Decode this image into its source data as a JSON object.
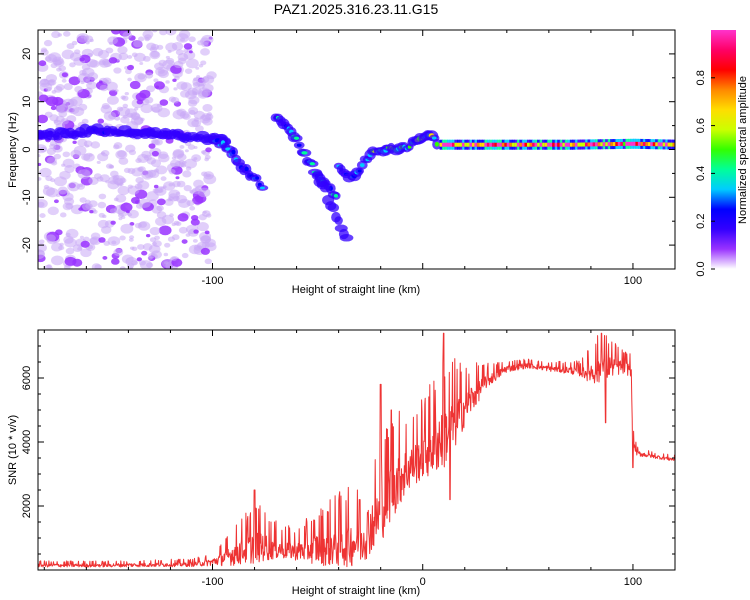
{
  "figure": {
    "title": "PAZ1.2025.316.23.11.G15"
  },
  "chart_data": [
    {
      "type": "heatmap",
      "name": "spectrogram",
      "title": "PAZ1.2025.316.23.11.G15",
      "xlabel": "Height of straight line (km)",
      "ylabel": "Frequency (Hz)",
      "xlim": [
        -183,
        120
      ],
      "ylim": [
        -25,
        25
      ],
      "xticks": [
        -100,
        0,
        100
      ],
      "xtick_labels": [
        "-100",
        "",
        "100"
      ],
      "yticks": [
        -20,
        -10,
        0,
        10,
        20
      ],
      "ytick_labels": [
        "-20",
        "-10",
        "0",
        "10",
        "20"
      ],
      "colorbar": {
        "label": "Normalized spectral amplitude",
        "range": [
          0,
          1
        ],
        "ticks": [
          0.0,
          0.2,
          0.4,
          0.6,
          0.8
        ],
        "tick_labels": [
          "0.0",
          "0.2",
          "0.4",
          "0.6",
          "0.8"
        ],
        "colors": [
          "#ffffff",
          "#9933ff",
          "#3300ff",
          "#0000ff",
          "#00ccff",
          "#00ff99",
          "#33ff00",
          "#ccff00",
          "#ffdd00",
          "#ff8800",
          "#ff0000",
          "#ff0066",
          "#ff33cc"
        ]
      },
      "noise_region": {
        "x": [
          -183,
          -100
        ],
        "y": [
          -25,
          25
        ],
        "level": 0.08
      },
      "features": [
        {
          "name": "main-band-left",
          "points": [
            [
              -183,
              3
            ],
            [
              -150,
              4
            ],
            [
              -120,
              3
            ],
            [
              -100,
              2.5
            ],
            [
              -92,
              2
            ]
          ],
          "level": 0.15
        },
        {
          "name": "branch-1",
          "points": [
            [
              -100,
              2
            ],
            [
              -95,
              1
            ],
            [
              -90,
              -1
            ],
            [
              -85,
              -4
            ],
            [
              -80,
              -6
            ],
            [
              -75,
              -8
            ]
          ],
          "level": 0.25
        },
        {
          "name": "branch-2",
          "points": [
            [
              -70,
              7
            ],
            [
              -65,
              5
            ],
            [
              -60,
              2
            ],
            [
              -55,
              -2
            ],
            [
              -50,
              -5
            ],
            [
              -45,
              -8
            ],
            [
              -40,
              -10
            ]
          ],
          "level": 0.3
        },
        {
          "name": "branch-2-tail",
          "points": [
            [
              -50,
              -5
            ],
            [
              -45,
              -10
            ],
            [
              -40,
              -15
            ],
            [
              -35,
              -20
            ]
          ],
          "level": 0.1
        },
        {
          "name": "branch-3",
          "points": [
            [
              -40,
              -4
            ],
            [
              -35,
              -6
            ],
            [
              -30,
              -4
            ],
            [
              -25,
              -1
            ]
          ],
          "level": 0.25
        },
        {
          "name": "recovery",
          "points": [
            [
              -25,
              -1
            ],
            [
              -15,
              0
            ],
            [
              -5,
              1
            ],
            [
              0,
              2
            ],
            [
              3,
              3.5
            ],
            [
              8,
              1
            ]
          ],
          "level": 0.45
        },
        {
          "name": "carrier",
          "points": [
            [
              8,
              1
            ],
            [
              40,
              1
            ],
            [
              70,
              1
            ],
            [
              100,
              1.2
            ],
            [
              120,
              1
            ]
          ],
          "level": 0.85
        }
      ]
    },
    {
      "type": "line",
      "name": "snr",
      "title": "",
      "xlabel": "Height of straight line (km)",
      "ylabel": "SNR (10 * v/v)",
      "xlim": [
        -183,
        120
      ],
      "ylim": [
        0,
        7500
      ],
      "xticks": [
        -100,
        0,
        100
      ],
      "xtick_labels": [
        "-100",
        "0",
        "100"
      ],
      "yticks": [
        2000,
        4000,
        6000
      ],
      "ytick_labels": [
        "2000",
        "4000",
        "6000"
      ],
      "color": "#ee3333",
      "envelope": {
        "x": [
          -183,
          -150,
          -110,
          -100,
          -90,
          -80,
          -70,
          -60,
          -50,
          -40,
          -30,
          -20,
          -15,
          -10,
          -5,
          0,
          5,
          10,
          15,
          20,
          30,
          40,
          50,
          60,
          70,
          75,
          80,
          85,
          90,
          95,
          99,
          100,
          102,
          110,
          120
        ],
        "base": [
          150,
          150,
          180,
          250,
          500,
          800,
          700,
          600,
          700,
          800,
          900,
          1800,
          2600,
          3000,
          3300,
          3600,
          3900,
          4200,
          4600,
          5100,
          5900,
          6300,
          6400,
          6300,
          6250,
          6200,
          6200,
          6300,
          6400,
          6350,
          6300,
          4000,
          3650,
          3550,
          3450
        ],
        "amp": [
          100,
          100,
          120,
          200,
          600,
          1000,
          600,
          500,
          900,
          1200,
          1300,
          1600,
          1800,
          1500,
          1200,
          1300,
          1600,
          1800,
          1500,
          1000,
          400,
          200,
          150,
          150,
          200,
          250,
          600,
          900,
          600,
          400,
          400,
          300,
          150,
          100,
          100
        ]
      },
      "spikes": [
        {
          "x": -80,
          "y": 2500
        },
        {
          "x": -30,
          "y": 2200
        },
        {
          "x": -20,
          "y": 5800
        },
        {
          "x": -15,
          "y": 5000
        },
        {
          "x": 10,
          "y": 7400
        },
        {
          "x": 13,
          "y": 2200
        },
        {
          "x": 85,
          "y": 7400
        },
        {
          "x": 87,
          "y": 4600
        },
        {
          "x": 100,
          "y": 3200
        }
      ]
    }
  ]
}
